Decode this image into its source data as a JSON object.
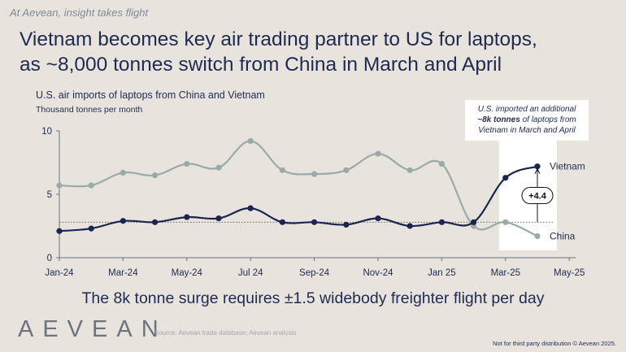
{
  "tagline": "At Aevean, insight takes flight",
  "headline": {
    "line1": "Vietnam becomes key air trading partner to US for laptops,",
    "line2": "as ~8,000 tonnes switch from China in March and April"
  },
  "callout": {
    "line1": "U.S. imported an additional",
    "line2_bold": "~8k tonnes",
    "line2_rest": " of laptops from",
    "line3": "Vietnam in March and April"
  },
  "subline": "The 8k tonne surge requires ±1.5 widebody freighter flight per day",
  "logo": "AEVEAN",
  "source": "Source: Aevean trade database; Aevean analysis",
  "legal": "Not for third party distribution © Aevean 2025.",
  "colors": {
    "vietnam": "#1b2550",
    "china": "#9aaaa9",
    "background": "#e8e4dd",
    "highlight": "#ffffff"
  },
  "chart_data": {
    "type": "line",
    "title": "U.S. air imports of laptops from China and Vietnam",
    "ylabel": "Thousand tonnes per month",
    "xlabel": "",
    "ylim": [
      0,
      10
    ],
    "y_ticks": [
      "0",
      "5",
      "10"
    ],
    "x_ticks": [
      "Jan-24",
      "Mar-24",
      "May-24",
      "Jul 24",
      "Sep-24",
      "Nov-24",
      "Jan 25",
      "Mar-25",
      "May-25"
    ],
    "x": [
      "Jan-24",
      "Feb-24",
      "Mar-24",
      "Apr-24",
      "May-24",
      "Jun-24",
      "Jul-24",
      "Aug-24",
      "Sep-24",
      "Oct-24",
      "Nov-24",
      "Dec-24",
      "Jan-25",
      "Feb-25",
      "Mar-25",
      "Apr-25"
    ],
    "series": [
      {
        "name": "China",
        "values": [
          5.7,
          5.7,
          6.7,
          6.5,
          7.4,
          7.1,
          9.2,
          6.9,
          6.6,
          6.9,
          8.2,
          6.9,
          7.4,
          2.5,
          2.8,
          1.7
        ]
      },
      {
        "name": "Vietnam",
        "values": [
          2.1,
          2.3,
          2.9,
          2.8,
          3.2,
          3.1,
          3.9,
          2.8,
          2.8,
          2.6,
          3.1,
          2.5,
          2.8,
          2.8,
          6.3,
          7.2
        ]
      }
    ],
    "reference_line": {
      "value": 2.8
    },
    "annotation": "+4.4",
    "highlight_range": [
      "Mar-25",
      "Apr-25"
    ],
    "grid": false,
    "legend": "line-end labels"
  }
}
